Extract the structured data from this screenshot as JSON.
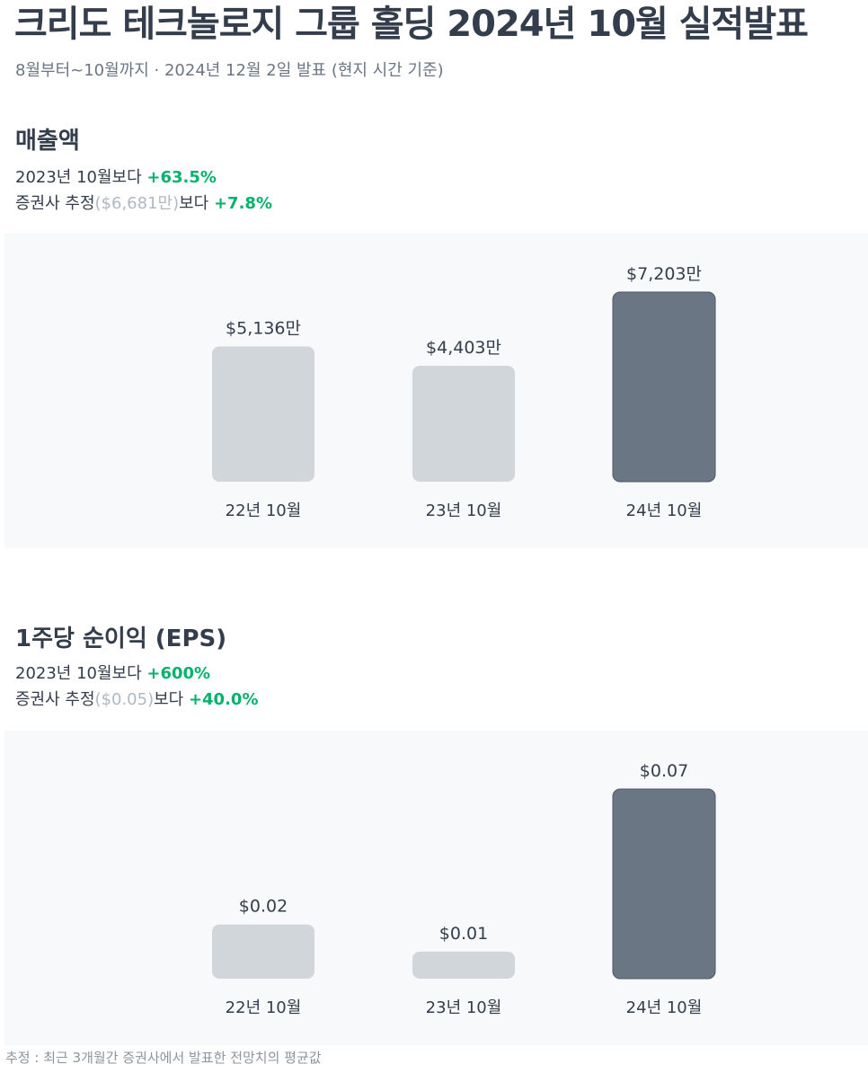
{
  "header": {
    "title": "크리도 테크놀로지 그룹 홀딩 2024년 10월 실적발표",
    "subtitle": "8월부터~10월까지 · 2024년 12월 2일 발표 (현지 시간 기준)"
  },
  "revenue": {
    "title": "매출액",
    "yoy_prefix": "2023년 10월보다 ",
    "yoy_value": "+63.5%",
    "est_prefix": "증권사 추정",
    "est_value": "($6,681만)",
    "est_mid": "보다 ",
    "est_change": "+7.8%"
  },
  "eps": {
    "title": "1주당 순이익 (EPS)",
    "yoy_prefix": "2023년 10월보다 ",
    "yoy_value": "+600%",
    "est_prefix": "증권사 추정",
    "est_value": "($0.05)",
    "est_mid": "보다 ",
    "est_change": "+40.0%"
  },
  "footnote": "추정 : 최근 3개월간 증권사에서 발표한 전망치의 평균값",
  "colors": {
    "past_bar": "#d1d6db",
    "current_bar": "#6b7684",
    "positive": "#03b26c",
    "panel_bg": "#f8f9fb"
  },
  "chart_data": [
    {
      "type": "bar",
      "title": "매출액",
      "categories": [
        "22년 10월",
        "23년 10월",
        "24년 10월"
      ],
      "values": [
        5136,
        4403,
        7203
      ],
      "value_labels": [
        "$5,136만",
        "$4,403만",
        "$7,203만"
      ],
      "unit": "만 달러",
      "highlight_index": 2
    },
    {
      "type": "bar",
      "title": "1주당 순이익 (EPS)",
      "categories": [
        "22년 10월",
        "23년 10월",
        "24년 10월"
      ],
      "values": [
        0.02,
        0.01,
        0.07
      ],
      "value_labels": [
        "$0.02",
        "$0.01",
        "$0.07"
      ],
      "unit": "$",
      "highlight_index": 2
    }
  ]
}
